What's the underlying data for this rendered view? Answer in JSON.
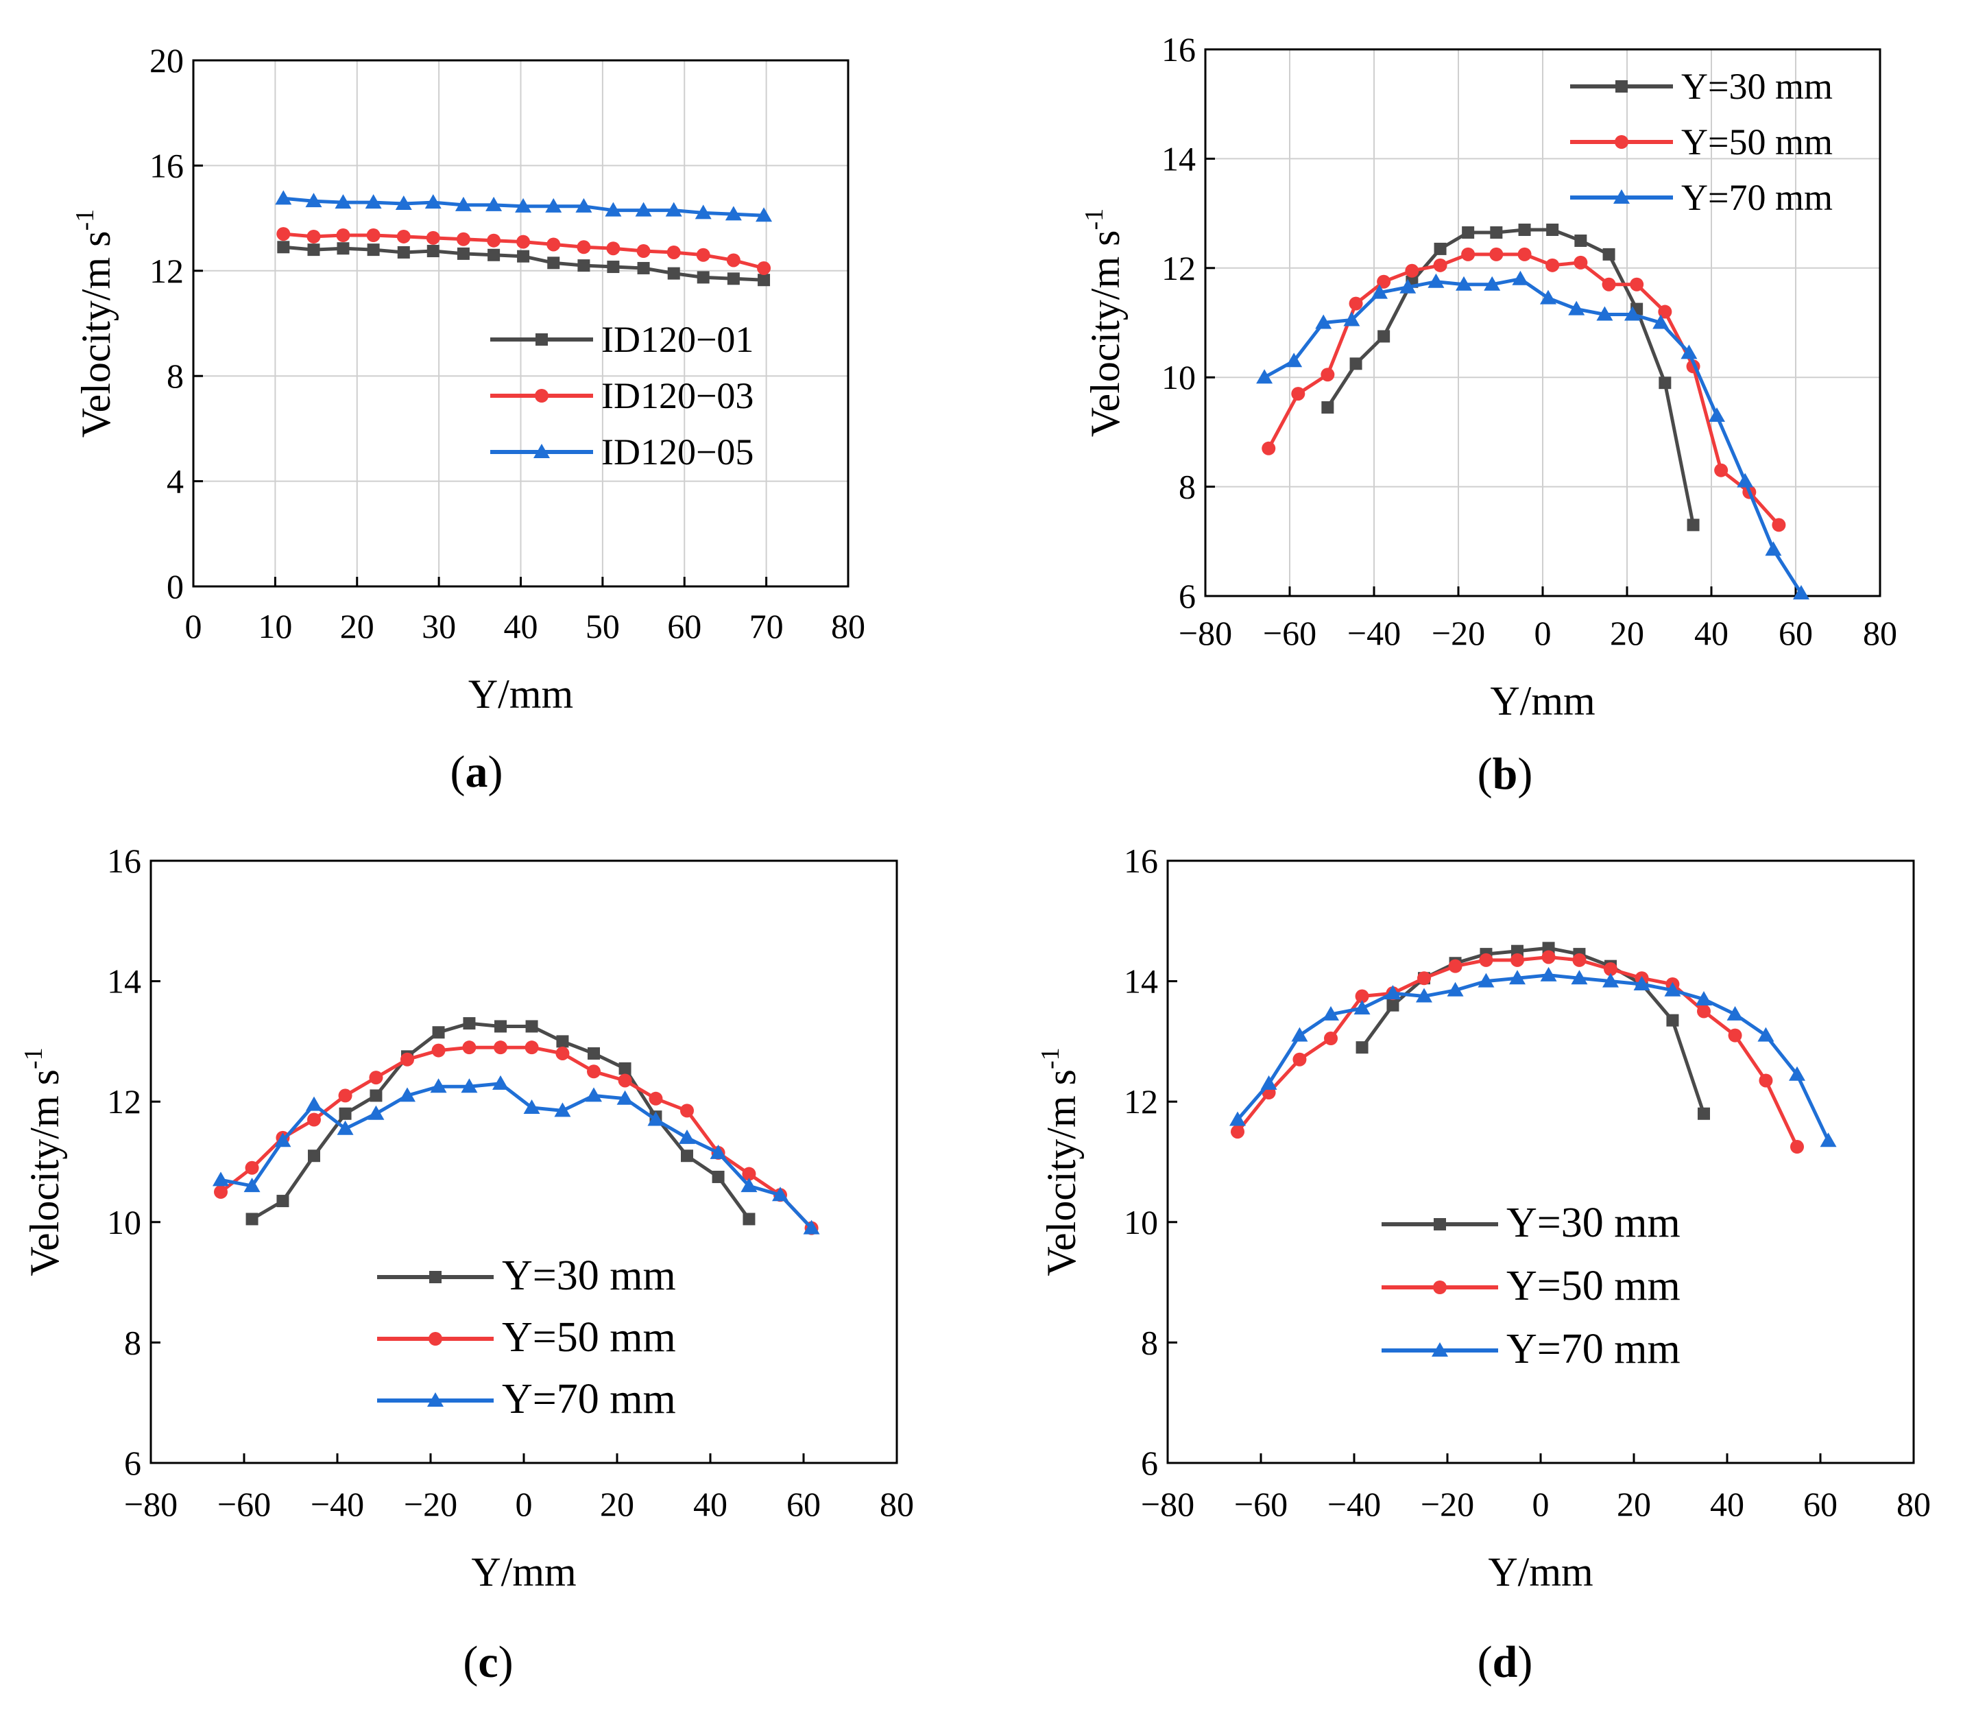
{
  "figure": {
    "panels": [
      {
        "label_open": "(",
        "label_letter": "a",
        "label_close": ")"
      },
      {
        "label_open": "(",
        "label_letter": "b",
        "label_close": ")"
      },
      {
        "label_open": "(",
        "label_letter": "c",
        "label_close": ")"
      },
      {
        "label_open": "(",
        "label_letter": "d",
        "label_close": ")"
      }
    ]
  },
  "chart_data": [
    {
      "type": "line",
      "panel": "a",
      "title": "",
      "xlabel": "Y/mm",
      "ylabel_main": "Velocity/m s",
      "ylabel_sup": "-1",
      "xlim": [
        0,
        80
      ],
      "ylim": [
        0,
        20
      ],
      "xticks": [
        0,
        10,
        20,
        30,
        40,
        50,
        60,
        70,
        80
      ],
      "yticks": [
        0,
        4,
        8,
        12,
        16,
        20
      ],
      "grid": true,
      "legend_position": "center-right",
      "series": [
        {
          "name": "ID120−01",
          "color": "#4a4a4a",
          "marker": "square",
          "x": [
            11,
            14.7,
            18.3,
            22,
            25.7,
            29.3,
            33,
            36.7,
            40.3,
            44,
            47.7,
            51.3,
            55,
            58.7,
            62.3,
            66,
            69.7
          ],
          "y": [
            12.9,
            12.8,
            12.85,
            12.8,
            12.7,
            12.75,
            12.65,
            12.6,
            12.55,
            12.3,
            12.2,
            12.15,
            12.1,
            11.9,
            11.75,
            11.7,
            11.65
          ]
        },
        {
          "name": "ID120−03",
          "color": "#f03c3c",
          "marker": "circle",
          "x": [
            11,
            14.7,
            18.3,
            22,
            25.7,
            29.3,
            33,
            36.7,
            40.3,
            44,
            47.7,
            51.3,
            55,
            58.7,
            62.3,
            66,
            69.7
          ],
          "y": [
            13.4,
            13.3,
            13.35,
            13.35,
            13.3,
            13.25,
            13.2,
            13.15,
            13.1,
            13.0,
            12.9,
            12.85,
            12.75,
            12.7,
            12.6,
            12.4,
            12.1
          ]
        },
        {
          "name": "ID120−05",
          "color": "#1f6fd6",
          "marker": "triangle",
          "x": [
            11,
            14.7,
            18.3,
            22,
            25.7,
            29.3,
            33,
            36.7,
            40.3,
            44,
            47.7,
            51.3,
            55,
            58.7,
            62.3,
            66,
            69.7
          ],
          "y": [
            14.75,
            14.65,
            14.6,
            14.6,
            14.55,
            14.6,
            14.5,
            14.5,
            14.45,
            14.45,
            14.45,
            14.3,
            14.3,
            14.3,
            14.2,
            14.15,
            14.1
          ]
        }
      ]
    },
    {
      "type": "line",
      "panel": "b",
      "title": "",
      "xlabel": "Y/mm",
      "ylabel_main": "Velocity/m s",
      "ylabel_sup": "-1",
      "xlim": [
        -80,
        80
      ],
      "ylim": [
        6,
        16
      ],
      "xticks": [
        -80,
        -60,
        -40,
        -20,
        0,
        20,
        40,
        60,
        80
      ],
      "yticks": [
        6,
        8,
        10,
        12,
        14,
        16
      ],
      "grid": true,
      "legend_position": "top-right",
      "series": [
        {
          "name": "Y=30 mm",
          "color": "#4a4a4a",
          "marker": "square",
          "x": [
            -51,
            -44.3,
            -37.7,
            -31,
            -24.3,
            -17.7,
            -11,
            -4.3,
            2.3,
            9,
            15.7,
            22.3,
            29,
            35.7
          ],
          "y": [
            9.45,
            10.25,
            10.75,
            11.75,
            12.35,
            12.65,
            12.65,
            12.7,
            12.7,
            12.5,
            12.25,
            11.25,
            9.9,
            7.3
          ]
        },
        {
          "name": "Y=50 mm",
          "color": "#f03c3c",
          "marker": "circle",
          "x": [
            -65,
            -58,
            -51,
            -44.3,
            -37.7,
            -31,
            -24.3,
            -17.7,
            -11,
            -4.3,
            2.3,
            9,
            15.7,
            22.3,
            29,
            35.7,
            42.3,
            49,
            56
          ],
          "y": [
            8.7,
            9.7,
            10.05,
            11.35,
            11.75,
            11.95,
            12.05,
            12.25,
            12.25,
            12.25,
            12.05,
            12.1,
            11.7,
            11.7,
            11.2,
            10.2,
            8.3,
            7.9,
            7.3
          ]
        },
        {
          "name": "Y=70 mm",
          "color": "#1f6fd6",
          "marker": "triangle",
          "x": [
            -66,
            -59,
            -52,
            -45.3,
            -38.7,
            -32,
            -25.3,
            -18.7,
            -12,
            -5.3,
            1.3,
            8,
            14.7,
            21.3,
            28,
            34.7,
            41.3,
            48,
            54.7,
            61.3
          ],
          "y": [
            10.0,
            10.3,
            11.0,
            11.05,
            11.55,
            11.65,
            11.75,
            11.7,
            11.7,
            11.8,
            11.45,
            11.25,
            11.15,
            11.15,
            11.0,
            10.45,
            9.3,
            8.1,
            6.85,
            6.05
          ]
        }
      ]
    },
    {
      "type": "line",
      "panel": "c",
      "title": "",
      "xlabel": "Y/mm",
      "ylabel_main": "Velocity/m s",
      "ylabel_sup": "-1",
      "xlim": [
        -80,
        80
      ],
      "ylim": [
        6,
        16
      ],
      "xticks": [
        -80,
        -60,
        -40,
        -20,
        0,
        20,
        40,
        60,
        80
      ],
      "yticks": [
        6,
        8,
        10,
        12,
        14,
        16
      ],
      "grid": false,
      "legend_position": "bottom-center",
      "series": [
        {
          "name": "Y=30 mm",
          "color": "#4a4a4a",
          "marker": "square",
          "x": [
            -58.3,
            -51.7,
            -45,
            -38.3,
            -31.7,
            -25,
            -18.3,
            -11.7,
            -5,
            1.7,
            8.3,
            15,
            21.7,
            28.3,
            35,
            41.7,
            48.3
          ],
          "y": [
            10.05,
            10.35,
            11.1,
            11.8,
            12.1,
            12.75,
            13.15,
            13.3,
            13.25,
            13.25,
            13.0,
            12.8,
            12.55,
            11.75,
            11.1,
            10.75,
            10.05
          ]
        },
        {
          "name": "Y=50 mm",
          "color": "#f03c3c",
          "marker": "circle",
          "x": [
            -65,
            -58.3,
            -51.7,
            -45,
            -38.3,
            -31.7,
            -25,
            -18.3,
            -11.7,
            -5,
            1.7,
            8.3,
            15,
            21.7,
            28.3,
            35,
            41.7,
            48.3,
            55,
            61.7
          ],
          "y": [
            10.5,
            10.9,
            11.4,
            11.7,
            12.1,
            12.4,
            12.7,
            12.85,
            12.9,
            12.9,
            12.9,
            12.8,
            12.5,
            12.35,
            12.05,
            11.85,
            11.15,
            10.8,
            10.45,
            9.9
          ]
        },
        {
          "name": "Y=70 mm",
          "color": "#1f6fd6",
          "marker": "triangle",
          "x": [
            -65,
            -58.3,
            -51.7,
            -45,
            -38.3,
            -31.7,
            -25,
            -18.3,
            -11.7,
            -5,
            1.7,
            8.3,
            15,
            21.7,
            28.3,
            35,
            41.7,
            48.3,
            55,
            61.7
          ],
          "y": [
            10.7,
            10.6,
            11.35,
            11.95,
            11.55,
            11.8,
            12.1,
            12.25,
            12.25,
            12.3,
            11.9,
            11.85,
            12.1,
            12.05,
            11.7,
            11.4,
            11.15,
            10.6,
            10.45,
            9.9
          ]
        }
      ]
    },
    {
      "type": "line",
      "panel": "d",
      "title": "",
      "xlabel": "Y/mm",
      "ylabel_main": "Velocity/m s",
      "ylabel_sup": "-1",
      "xlim": [
        -80,
        80
      ],
      "ylim": [
        6,
        16
      ],
      "xticks": [
        -80,
        -60,
        -40,
        -20,
        0,
        20,
        40,
        60,
        80
      ],
      "yticks": [
        6,
        8,
        10,
        12,
        14,
        16
      ],
      "grid": false,
      "legend_position": "bottom-left",
      "series": [
        {
          "name": "Y=30 mm",
          "color": "#4a4a4a",
          "marker": "square",
          "x": [
            -38.3,
            -31.7,
            -25,
            -18.3,
            -11.7,
            -5,
            1.7,
            8.3,
            15,
            21.7,
            28.3,
            35
          ],
          "y": [
            12.9,
            13.6,
            14.05,
            14.3,
            14.45,
            14.5,
            14.55,
            14.45,
            14.25,
            13.95,
            13.35,
            11.8
          ]
        },
        {
          "name": "Y=50 mm",
          "color": "#f03c3c",
          "marker": "circle",
          "x": [
            -65,
            -58.3,
            -51.7,
            -45,
            -38.3,
            -31.7,
            -25,
            -18.3,
            -11.7,
            -5,
            1.7,
            8.3,
            15,
            21.7,
            28.3,
            35,
            41.7,
            48.3,
            55
          ],
          "y": [
            11.5,
            12.15,
            12.7,
            13.05,
            13.75,
            13.8,
            14.05,
            14.25,
            14.35,
            14.35,
            14.4,
            14.35,
            14.2,
            14.05,
            13.95,
            13.5,
            13.1,
            12.35,
            11.25
          ]
        },
        {
          "name": "Y=70 mm",
          "color": "#1f6fd6",
          "marker": "triangle",
          "x": [
            -65,
            -58.3,
            -51.7,
            -45,
            -38.3,
            -31.7,
            -25,
            -18.3,
            -11.7,
            -5,
            1.7,
            8.3,
            15,
            21.7,
            28.3,
            35,
            41.7,
            48.3,
            55,
            61.7
          ],
          "y": [
            11.7,
            12.3,
            13.1,
            13.45,
            13.55,
            13.8,
            13.75,
            13.85,
            14.0,
            14.05,
            14.1,
            14.05,
            14.0,
            13.95,
            13.85,
            13.7,
            13.45,
            13.1,
            12.45,
            11.35
          ]
        }
      ]
    }
  ]
}
